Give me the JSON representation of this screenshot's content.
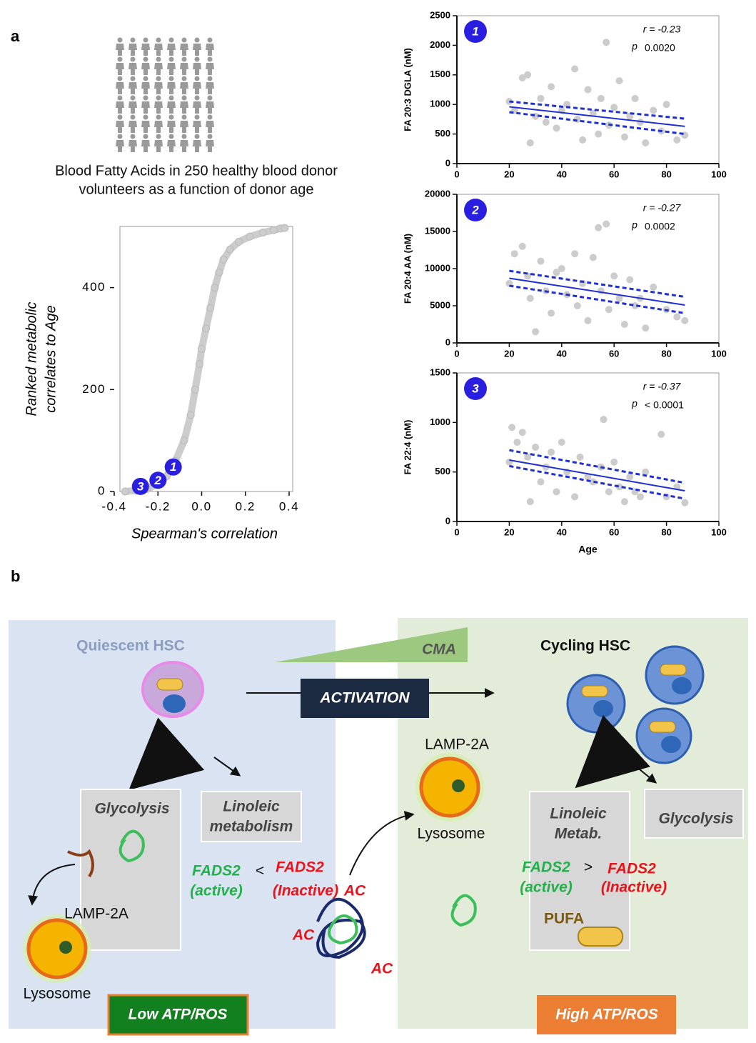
{
  "panel_labels": [
    "a",
    "b"
  ],
  "caption": [
    "Blood Fatty Acids in 250 healthy blood donor",
    "volunteers as a function of donor age"
  ],
  "chart_data": [
    {
      "type": "scatter",
      "connect": true,
      "xlabel": "Spearman's correlation",
      "ylabel": [
        "Ranked metabolic",
        "correlates to Age"
      ],
      "x": [
        -0.35,
        -0.3,
        -0.25,
        -0.2,
        -0.16,
        -0.12,
        -0.08,
        -0.05,
        -0.03,
        -0.01,
        0.0,
        0.02,
        0.04,
        0.06,
        0.08,
        0.1,
        0.13,
        0.17,
        0.22,
        0.28,
        0.33,
        0.36,
        0.38
      ],
      "values": [
        0,
        2,
        5,
        15,
        30,
        60,
        100,
        150,
        200,
        250,
        280,
        320,
        360,
        400,
        430,
        455,
        475,
        490,
        500,
        508,
        513,
        516,
        517
      ],
      "color": "#cccccc",
      "accent_color": "#2a1ee0",
      "highlights": [
        {
          "label": "1",
          "x": -0.13,
          "y": 48
        },
        {
          "label": "2",
          "x": -0.2,
          "y": 22
        },
        {
          "label": "3",
          "x": -0.28,
          "y": 10
        }
      ],
      "xlim": [
        -0.4,
        0.4
      ],
      "ylim": [
        0,
        520
      ],
      "xticks": [
        -0.4,
        -0.2,
        {
          "value": 0,
          "label": "0.0"
        },
        0.2,
        0.4
      ],
      "yticks": [
        0,
        200,
        400
      ]
    },
    {
      "type": "scatter",
      "ylabel": "FA 20:3 DGLA  (nM)",
      "badge": "1",
      "r": "r = -0.23",
      "p": "p",
      "p_value": "0.0020",
      "x": [
        20,
        22,
        25,
        27,
        28,
        30,
        32,
        34,
        36,
        38,
        40,
        42,
        45,
        46,
        48,
        50,
        52,
        54,
        55,
        57,
        58,
        60,
        62,
        64,
        66,
        68,
        70,
        72,
        75,
        78,
        80,
        84,
        87
      ],
      "values": [
        1050,
        900,
        1450,
        1500,
        350,
        800,
        1100,
        700,
        1300,
        600,
        900,
        1000,
        1600,
        750,
        400,
        1250,
        850,
        500,
        1100,
        2050,
        650,
        950,
        1400,
        450,
        800,
        1100,
        700,
        350,
        900,
        550,
        1000,
        400,
        480
      ],
      "color": "#cccccc",
      "accent_color": "#2a1ee0",
      "fit_color": "#1f2fd6",
      "fit": {
        "x": [
          20,
          87
        ],
        "y": [
          960,
          630
        ],
        "upper": [
          1050,
          760
        ],
        "lower": [
          870,
          500
        ]
      },
      "xlim": [
        0,
        100
      ],
      "ylim": [
        0,
        2500
      ],
      "xticks": [
        0,
        20,
        40,
        60,
        80,
        100
      ],
      "yticks": [
        0,
        500,
        1000,
        1500,
        2000,
        2500
      ]
    },
    {
      "type": "scatter",
      "ylabel": "FA 20:4  AA  (nM)",
      "badge": "2",
      "r": "r = -0.27",
      "p": "p",
      "p_value": "0.0002",
      "x": [
        20,
        22,
        25,
        27,
        28,
        30,
        32,
        34,
        36,
        38,
        40,
        42,
        45,
        46,
        48,
        50,
        52,
        54,
        55,
        57,
        58,
        60,
        62,
        64,
        66,
        68,
        70,
        72,
        75,
        80,
        84,
        87
      ],
      "values": [
        8000,
        12000,
        13000,
        9000,
        6000,
        1500,
        11000,
        7000,
        4000,
        9500,
        10000,
        6500,
        12000,
        5000,
        8000,
        3000,
        11500,
        15500,
        7000,
        16000,
        4500,
        9000,
        6000,
        2500,
        8500,
        5000,
        6000,
        2000,
        7500,
        4500,
        3500,
        3000
      ],
      "color": "#cccccc",
      "accent_color": "#2a1ee0",
      "fit_color": "#1f2fd6",
      "fit": {
        "x": [
          20,
          87
        ],
        "y": [
          8700,
          5100
        ],
        "upper": [
          9700,
          6200
        ],
        "lower": [
          7700,
          4000
        ]
      },
      "xlim": [
        0,
        100
      ],
      "ylim": [
        0,
        20000
      ],
      "xticks": [
        0,
        20,
        40,
        60,
        80,
        100
      ],
      "yticks": [
        0,
        5000,
        10000,
        15000,
        20000
      ]
    },
    {
      "type": "scatter",
      "ylabel": "FA 22:4  (nM)",
      "xlabel": "Age",
      "badge": "3",
      "r": "r = -0.37",
      "p": "p",
      "p_value": "< 0.0001",
      "x": [
        20,
        21,
        23,
        25,
        27,
        28,
        30,
        32,
        34,
        36,
        38,
        40,
        42,
        45,
        47,
        50,
        52,
        55,
        56,
        58,
        60,
        62,
        64,
        66,
        68,
        70,
        72,
        78,
        80,
        84,
        87
      ],
      "values": [
        600,
        950,
        800,
        900,
        650,
        200,
        750,
        400,
        550,
        700,
        300,
        800,
        500,
        250,
        650,
        450,
        400,
        550,
        1030,
        300,
        600,
        350,
        200,
        450,
        300,
        250,
        500,
        880,
        250,
        350,
        190
      ],
      "color": "#cccccc",
      "accent_color": "#2a1ee0",
      "fit_color": "#1f2fd6",
      "fit": {
        "x": [
          20,
          87
        ],
        "y": [
          620,
          310
        ],
        "upper": [
          720,
          390
        ],
        "lower": [
          560,
          230
        ]
      },
      "xlim": [
        0,
        100
      ],
      "ylim": [
        0,
        1500
      ],
      "xticks": [
        0,
        20,
        40,
        60,
        80,
        100
      ],
      "yticks": [
        0,
        500,
        1000,
        1500
      ]
    }
  ],
  "diagram": {
    "left_title": "Quiescent HSC",
    "cma": "CMA",
    "right_title": "Cycling HSC",
    "activation": "ACTIVATION",
    "left_glycolysis": "Glycolysis",
    "left_linoleic": [
      "Linoleic",
      "metabolism"
    ],
    "left_fads": {
      "active": [
        "FADS2",
        "(active)"
      ],
      "op": "<",
      "inactive": [
        "FADS2",
        "(Inactive)"
      ]
    },
    "ac": [
      "AC",
      "AC",
      "AC"
    ],
    "left_lamp": "LAMP-2A",
    "left_lysosome": "Lysosome",
    "right_lamp": "LAMP-2A",
    "right_lysosome": "Lysosome",
    "right_linoleic": [
      "Linoleic",
      "Metab."
    ],
    "right_glycolysis": "Glycolysis",
    "right_fads": {
      "active": [
        "FADS2",
        "(active)"
      ],
      "op": ">",
      "inactive": [
        "FADS2",
        "(Inactive)"
      ]
    },
    "pufa": "PUFA",
    "low": "Low ATP/ROS",
    "high": "High ATP/ROS"
  }
}
